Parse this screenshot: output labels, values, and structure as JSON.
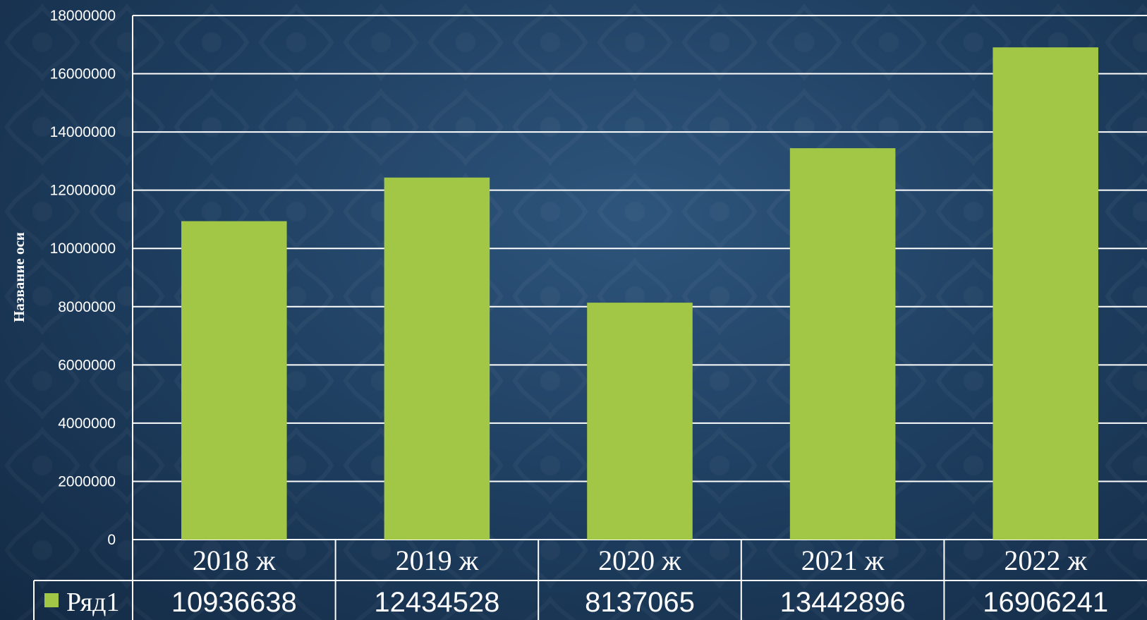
{
  "chart_data": {
    "type": "bar",
    "categories": [
      "2018 ж",
      "2019 ж",
      "2020 ж",
      "2021 ж",
      "2022 ж"
    ],
    "series": [
      {
        "name": "Ряд1",
        "values": [
          10936638,
          12434528,
          8137065,
          13442896,
          16906241
        ]
      }
    ],
    "ylabel": "Название оси",
    "ylim": [
      0,
      18000000
    ],
    "yticks": [
      "0",
      "2000000",
      "4000000",
      "6000000",
      "8000000",
      "10000000",
      "12000000",
      "14000000",
      "16000000",
      "18000000"
    ],
    "grid": true,
    "legend": "data-table-left",
    "data_table": true
  },
  "colors": {
    "bar": "#a2c646",
    "grid": "#ffffff",
    "text": "#ffffff"
  }
}
